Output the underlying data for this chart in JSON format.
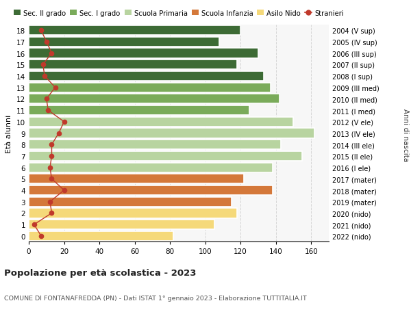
{
  "ages": [
    0,
    1,
    2,
    3,
    4,
    5,
    6,
    7,
    8,
    9,
    10,
    11,
    12,
    13,
    14,
    15,
    16,
    17,
    18
  ],
  "bar_values": [
    82,
    105,
    118,
    115,
    138,
    122,
    138,
    155,
    143,
    162,
    150,
    125,
    142,
    137,
    133,
    118,
    130,
    108,
    120
  ],
  "right_labels": [
    "2022 (nido)",
    "2021 (nido)",
    "2020 (nido)",
    "2019 (mater)",
    "2018 (mater)",
    "2017 (mater)",
    "2016 (I ele)",
    "2015 (II ele)",
    "2014 (III ele)",
    "2013 (IV ele)",
    "2012 (V ele)",
    "2011 (I med)",
    "2010 (II med)",
    "2009 (III med)",
    "2008 (I sup)",
    "2007 (II sup)",
    "2006 (III sup)",
    "2005 (IV sup)",
    "2004 (V sup)"
  ],
  "stranieri_values": [
    7,
    3,
    13,
    12,
    20,
    13,
    12,
    13,
    13,
    17,
    20,
    11,
    10,
    15,
    9,
    8,
    13,
    10,
    7
  ],
  "bar_colors": {
    "sec2": "#3d6b35",
    "sec1": "#7aab5a",
    "primaria": "#b8d4a0",
    "infanzia": "#d4783a",
    "nido": "#f5d97a"
  },
  "age_categories": {
    "sec2": [
      14,
      15,
      16,
      17,
      18
    ],
    "sec1": [
      11,
      12,
      13
    ],
    "primaria": [
      6,
      7,
      8,
      9,
      10
    ],
    "infanzia": [
      3,
      4,
      5
    ],
    "nido": [
      0,
      1,
      2
    ]
  },
  "ylabel": "Età alunni",
  "right_ylabel": "Anni di nascita",
  "title": "Popolazione per età scolastica - 2023",
  "subtitle": "COMUNE DI FONTANAFREDDA (PN) - Dati ISTAT 1° gennaio 2023 - Elaborazione TUTTITALIA.IT",
  "xlim": [
    0,
    170
  ],
  "xticks": [
    0,
    20,
    40,
    60,
    80,
    100,
    120,
    140,
    160
  ],
  "bg_color": "#f7f7f7",
  "grid_color": "#d5d5d5",
  "stranieri_color": "#c0392b"
}
